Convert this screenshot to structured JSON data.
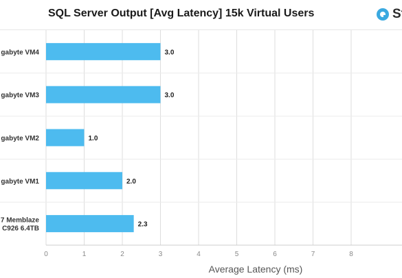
{
  "title": "SQL Server Output [Avg Latency] 15k Virtual Users",
  "logo": {
    "text": "St",
    "icon": "storagereview-logo-icon"
  },
  "colors": {
    "bar": "#4dbbef",
    "grid": "#dddddd",
    "logo": "#3aa9e0"
  },
  "chart_data": {
    "type": "bar",
    "orientation": "horizontal",
    "title": "SQL Server Output [Avg Latency] 15k Virtual Users",
    "xlabel": "Average Latency (ms)",
    "ylabel": "",
    "categories": [
      [
        "gabyte VM4"
      ],
      [
        "gabyte VM3"
      ],
      [
        "gabyte VM2"
      ],
      [
        "gabyte VM1"
      ],
      [
        "7 Memblaze",
        "C926 6.4TB"
      ]
    ],
    "values": [
      3.0,
      3.0,
      1.0,
      2.0,
      2.3
    ],
    "value_labels": [
      "3.0",
      "3.0",
      "1.0",
      "2.0",
      "2.3"
    ],
    "xlim": [
      0,
      9
    ],
    "xticks": [
      "0",
      "1",
      "2",
      "3",
      "4",
      "5",
      "6",
      "7",
      "8"
    ],
    "grid": true
  }
}
